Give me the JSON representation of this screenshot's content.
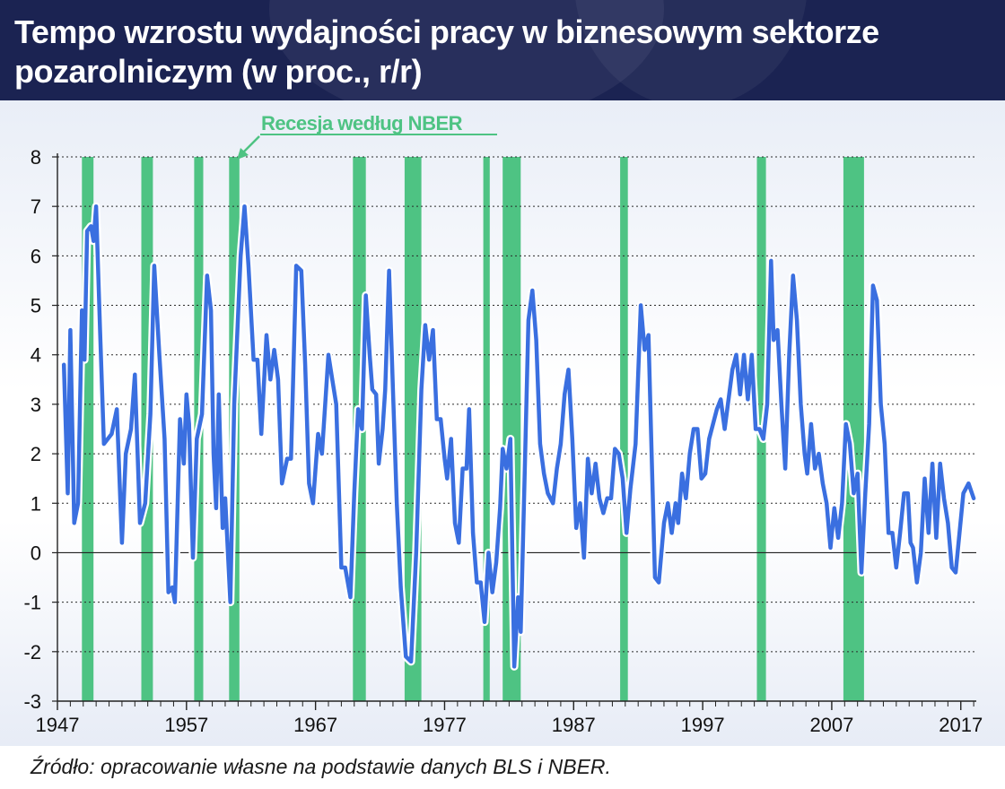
{
  "title": "Tempo wzrostu wydajności pracy w biznesowym sektorze pozarolniczym (w proc., r/r)",
  "source": "Źródło: opracowanie własne na podstawie danych BLS i NBER.",
  "colors": {
    "header": "#1b2352",
    "line": "#3a6fe0",
    "recession": "#4ec383",
    "grid": "#2b2b2b"
  },
  "chart_data": {
    "type": "line",
    "title": "Tempo wzrostu wydajności pracy w biznesowym sektorze pozarolniczym (w proc., r/r)",
    "xlabel": "",
    "ylabel": "",
    "xlim": [
      1947,
      2018.2
    ],
    "ylim": [
      -3,
      8
    ],
    "x_ticks": [
      1947,
      1957,
      1967,
      1977,
      1987,
      1997,
      2007,
      2017
    ],
    "y_ticks": [
      8,
      7,
      6,
      5,
      4,
      3,
      2,
      1,
      0,
      -1,
      -2,
      -3
    ],
    "grid": "horizontal dashed",
    "annotation": "Recesja według NBER",
    "recessions": [
      [
        1948.9,
        1949.8
      ],
      [
        1953.5,
        1954.4
      ],
      [
        1957.6,
        1958.3
      ],
      [
        1960.3,
        1961.1
      ],
      [
        1969.9,
        1970.9
      ],
      [
        1973.9,
        1975.2
      ],
      [
        1980.0,
        1980.5
      ],
      [
        1981.5,
        1982.9
      ],
      [
        1990.6,
        1991.2
      ],
      [
        2001.2,
        2001.9
      ],
      [
        2007.9,
        2009.5
      ]
    ],
    "series": [
      {
        "points": [
          [
            1947.5,
            3.8
          ],
          [
            1947.8,
            1.2
          ],
          [
            1948.0,
            4.5
          ],
          [
            1948.3,
            0.6
          ],
          [
            1948.6,
            1.0
          ],
          [
            1948.9,
            4.9
          ],
          [
            1949.1,
            3.9
          ],
          [
            1949.3,
            6.5
          ],
          [
            1949.6,
            6.6
          ],
          [
            1949.8,
            6.3
          ],
          [
            1950.0,
            7.0
          ],
          [
            1950.3,
            4.5
          ],
          [
            1950.6,
            2.2
          ],
          [
            1951.2,
            2.4
          ],
          [
            1951.6,
            2.9
          ],
          [
            1952.0,
            0.2
          ],
          [
            1952.3,
            2.0
          ],
          [
            1952.7,
            2.5
          ],
          [
            1953.0,
            3.6
          ],
          [
            1953.4,
            0.6
          ],
          [
            1953.8,
            1.0
          ],
          [
            1954.2,
            2.8
          ],
          [
            1954.5,
            5.8
          ],
          [
            1954.9,
            4.0
          ],
          [
            1955.3,
            2.3
          ],
          [
            1955.6,
            -0.8
          ],
          [
            1955.9,
            -0.7
          ],
          [
            1956.1,
            -1.0
          ],
          [
            1956.5,
            2.7
          ],
          [
            1956.8,
            1.8
          ],
          [
            1957.0,
            3.2
          ],
          [
            1957.2,
            2.6
          ],
          [
            1957.5,
            -0.1
          ],
          [
            1957.8,
            2.3
          ],
          [
            1958.2,
            2.8
          ],
          [
            1958.6,
            5.6
          ],
          [
            1958.9,
            4.9
          ],
          [
            1959.1,
            2.0
          ],
          [
            1959.3,
            0.9
          ],
          [
            1959.5,
            3.2
          ],
          [
            1959.8,
            0.5
          ],
          [
            1960.0,
            1.1
          ],
          [
            1960.4,
            -1.0
          ],
          [
            1960.7,
            3.0
          ],
          [
            1961.2,
            6.0
          ],
          [
            1961.5,
            7.0
          ],
          [
            1961.8,
            5.8
          ],
          [
            1962.2,
            3.9
          ],
          [
            1962.5,
            3.9
          ],
          [
            1962.8,
            2.4
          ],
          [
            1963.2,
            4.4
          ],
          [
            1963.5,
            3.5
          ],
          [
            1963.8,
            4.1
          ],
          [
            1964.1,
            3.5
          ],
          [
            1964.4,
            1.4
          ],
          [
            1964.8,
            1.9
          ],
          [
            1965.1,
            1.9
          ],
          [
            1965.5,
            5.8
          ],
          [
            1965.9,
            5.7
          ],
          [
            1966.2,
            3.8
          ],
          [
            1966.5,
            1.4
          ],
          [
            1966.8,
            1.0
          ],
          [
            1967.2,
            2.4
          ],
          [
            1967.5,
            2.0
          ],
          [
            1968.0,
            4.0
          ],
          [
            1968.3,
            3.5
          ],
          [
            1968.6,
            3.0
          ],
          [
            1969.0,
            -0.3
          ],
          [
            1969.3,
            -0.3
          ],
          [
            1969.7,
            -0.9
          ],
          [
            1970.0,
            1.2
          ],
          [
            1970.3,
            2.9
          ],
          [
            1970.6,
            2.5
          ],
          [
            1970.9,
            5.2
          ],
          [
            1971.2,
            4.0
          ],
          [
            1971.4,
            3.3
          ],
          [
            1971.7,
            3.2
          ],
          [
            1971.9,
            1.8
          ],
          [
            1972.2,
            2.5
          ],
          [
            1972.4,
            3.3
          ],
          [
            1972.7,
            5.7
          ],
          [
            1973.0,
            3.3
          ],
          [
            1973.3,
            1.0
          ],
          [
            1973.6,
            -0.7
          ],
          [
            1974.0,
            -2.1
          ],
          [
            1974.4,
            -2.2
          ],
          [
            1974.8,
            0.0
          ],
          [
            1975.2,
            3.3
          ],
          [
            1975.5,
            4.6
          ],
          [
            1975.8,
            3.9
          ],
          [
            1976.1,
            4.5
          ],
          [
            1976.4,
            2.7
          ],
          [
            1976.7,
            2.7
          ],
          [
            1977.0,
            1.9
          ],
          [
            1977.2,
            1.5
          ],
          [
            1977.5,
            2.3
          ],
          [
            1977.8,
            0.6
          ],
          [
            1978.1,
            0.2
          ],
          [
            1978.4,
            1.7
          ],
          [
            1978.7,
            1.7
          ],
          [
            1978.9,
            2.9
          ],
          [
            1979.2,
            0.4
          ],
          [
            1979.5,
            -0.6
          ],
          [
            1979.8,
            -0.6
          ],
          [
            1980.1,
            -1.4
          ],
          [
            1980.4,
            0.0
          ],
          [
            1980.7,
            -0.8
          ],
          [
            1981.0,
            -0.2
          ],
          [
            1981.3,
            0.9
          ],
          [
            1981.5,
            2.1
          ],
          [
            1981.8,
            1.7
          ],
          [
            1982.1,
            2.3
          ],
          [
            1982.4,
            -2.3
          ],
          [
            1982.7,
            -0.9
          ],
          [
            1982.9,
            -1.6
          ],
          [
            1983.2,
            1.5
          ],
          [
            1983.5,
            4.7
          ],
          [
            1983.8,
            5.3
          ],
          [
            1984.1,
            4.3
          ],
          [
            1984.4,
            2.2
          ],
          [
            1984.7,
            1.6
          ],
          [
            1985.0,
            1.2
          ],
          [
            1985.4,
            1.0
          ],
          [
            1985.7,
            1.7
          ],
          [
            1986.0,
            2.2
          ],
          [
            1986.3,
            3.2
          ],
          [
            1986.6,
            3.7
          ],
          [
            1986.9,
            2.3
          ],
          [
            1987.2,
            0.5
          ],
          [
            1987.5,
            1.0
          ],
          [
            1987.8,
            -0.1
          ],
          [
            1988.1,
            1.9
          ],
          [
            1988.4,
            1.2
          ],
          [
            1988.7,
            1.8
          ],
          [
            1989.0,
            1.1
          ],
          [
            1989.3,
            0.8
          ],
          [
            1989.6,
            1.1
          ],
          [
            1989.9,
            1.1
          ],
          [
            1990.2,
            2.1
          ],
          [
            1990.5,
            2.0
          ],
          [
            1990.8,
            1.5
          ],
          [
            1991.1,
            0.4
          ],
          [
            1991.4,
            1.3
          ],
          [
            1991.8,
            2.2
          ],
          [
            1992.2,
            5.0
          ],
          [
            1992.5,
            4.1
          ],
          [
            1992.8,
            4.4
          ],
          [
            1993.0,
            2.4
          ],
          [
            1993.3,
            -0.5
          ],
          [
            1993.6,
            -0.6
          ],
          [
            1994.0,
            0.6
          ],
          [
            1994.3,
            1.0
          ],
          [
            1994.6,
            0.4
          ],
          [
            1994.9,
            1.0
          ],
          [
            1995.1,
            0.6
          ],
          [
            1995.4,
            1.6
          ],
          [
            1995.7,
            1.1
          ],
          [
            1996.0,
            2.0
          ],
          [
            1996.3,
            2.5
          ],
          [
            1996.6,
            2.5
          ],
          [
            1996.9,
            1.5
          ],
          [
            1997.2,
            1.6
          ],
          [
            1997.5,
            2.3
          ],
          [
            1997.8,
            2.6
          ],
          [
            1998.1,
            2.9
          ],
          [
            1998.4,
            3.1
          ],
          [
            1998.7,
            2.5
          ],
          [
            1999.0,
            3.1
          ],
          [
            1999.3,
            3.7
          ],
          [
            1999.6,
            4.0
          ],
          [
            1999.9,
            3.2
          ],
          [
            2000.2,
            4.0
          ],
          [
            2000.5,
            3.1
          ],
          [
            2000.8,
            4.0
          ],
          [
            2001.1,
            2.5
          ],
          [
            2001.4,
            2.5
          ],
          [
            2001.7,
            2.3
          ],
          [
            2002.0,
            3.0
          ],
          [
            2002.3,
            5.9
          ],
          [
            2002.5,
            4.3
          ],
          [
            2002.8,
            4.5
          ],
          [
            2003.1,
            3.0
          ],
          [
            2003.4,
            1.7
          ],
          [
            2003.7,
            4.0
          ],
          [
            2004.0,
            5.6
          ],
          [
            2004.3,
            4.7
          ],
          [
            2004.6,
            3.0
          ],
          [
            2004.9,
            2.0
          ],
          [
            2005.1,
            1.6
          ],
          [
            2005.4,
            2.6
          ],
          [
            2005.7,
            1.7
          ],
          [
            2006.0,
            2.0
          ],
          [
            2006.3,
            1.4
          ],
          [
            2006.6,
            1.0
          ],
          [
            2006.9,
            0.1
          ],
          [
            2007.2,
            0.9
          ],
          [
            2007.5,
            0.3
          ],
          [
            2007.8,
            1.0
          ],
          [
            2008.1,
            2.6
          ],
          [
            2008.4,
            2.2
          ],
          [
            2008.7,
            1.2
          ],
          [
            2009.0,
            1.6
          ],
          [
            2009.3,
            -0.4
          ],
          [
            2009.6,
            1.2
          ],
          [
            2009.9,
            2.6
          ],
          [
            2010.2,
            5.4
          ],
          [
            2010.5,
            5.1
          ],
          [
            2010.8,
            3.0
          ],
          [
            2011.1,
            2.2
          ],
          [
            2011.4,
            0.4
          ],
          [
            2011.7,
            0.4
          ],
          [
            2012.0,
            -0.3
          ],
          [
            2012.3,
            0.4
          ],
          [
            2012.6,
            1.2
          ],
          [
            2012.9,
            1.2
          ],
          [
            2013.1,
            0.2
          ],
          [
            2013.3,
            0.1
          ],
          [
            2013.6,
            -0.6
          ],
          [
            2013.9,
            0.0
          ],
          [
            2014.2,
            1.5
          ],
          [
            2014.5,
            0.4
          ],
          [
            2014.8,
            1.8
          ],
          [
            2015.1,
            0.3
          ],
          [
            2015.4,
            1.8
          ],
          [
            2015.7,
            1.1
          ],
          [
            2016.0,
            0.6
          ],
          [
            2016.3,
            -0.3
          ],
          [
            2016.6,
            -0.4
          ],
          [
            2016.9,
            0.4
          ],
          [
            2017.2,
            1.2
          ],
          [
            2017.6,
            1.4
          ],
          [
            2018.0,
            1.1
          ]
        ]
      }
    ]
  }
}
